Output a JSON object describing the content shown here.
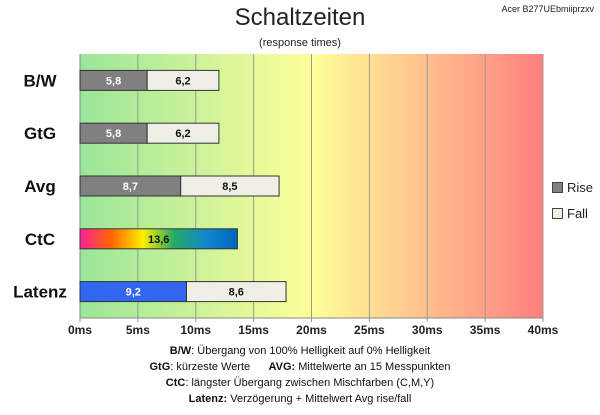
{
  "header": {
    "title": "Schaltzeiten",
    "subtitle": "(response times)",
    "monitor": "Acer B277UEbmiiprzxv"
  },
  "chart_data": {
    "type": "bar",
    "orientation": "horizontal",
    "stacked": true,
    "title": "Schaltzeiten",
    "subtitle": "(response times)",
    "categories": [
      "B/W",
      "GtG",
      "Avg",
      "CtC",
      "Latenz"
    ],
    "series": [
      {
        "name": "Rise",
        "color": "#808080",
        "values": [
          5.8,
          5.8,
          8.7,
          null,
          9.2
        ]
      },
      {
        "name": "Fall",
        "color": "#efefe6",
        "values": [
          6.2,
          6.2,
          8.5,
          null,
          8.6
        ]
      },
      {
        "name": "CtC",
        "values": [
          null,
          null,
          null,
          13.6,
          null
        ]
      }
    ],
    "bar_labels": [
      [
        "5,8",
        "6,2"
      ],
      [
        "5,8",
        "6,2"
      ],
      [
        "8,7",
        "8,5"
      ],
      [
        "13,6"
      ],
      [
        "9,2",
        "8,6"
      ]
    ],
    "xlim": [
      0,
      40
    ],
    "xticks": [
      0,
      5,
      10,
      15,
      20,
      25,
      30,
      35,
      40
    ],
    "xtick_labels": [
      "0ms",
      "5ms",
      "10ms",
      "15ms",
      "20ms",
      "25ms",
      "30ms",
      "35ms",
      "40ms"
    ],
    "grid": true,
    "legend_position": "right",
    "background_gradient": [
      "#99e699",
      "#ffff99",
      "#ff7f7f"
    ],
    "latenz_rise_color": "#3366ee",
    "ctc_gradient": [
      "#ff2299",
      "#ff6600",
      "#ffee00",
      "#22aa66",
      "#1188cc",
      "#0066bb"
    ]
  },
  "legend": {
    "rise_label": "Rise",
    "fall_label": "Fall",
    "rise_color": "#808080",
    "fall_color": "#efefe6"
  },
  "notes": {
    "line1_key": "B/W",
    "line1_text": ":  Übergang von 100% Helligkeit auf 0% Helligkeit",
    "line2_key_a": "GtG",
    "line2_text_a": ": kürzeste  Werte",
    "line2_key_b": "AVG:",
    "line2_text_b": " Mittelwerte  an 15 Messpunkten",
    "line3_key": "CtC",
    "line3_text": ": längster Übergang  zwischen Mischfarben (C,M,Y)",
    "line4_key": "Latenz:",
    "line4_text": " Verzögerung  + Mittelwert  Avg rise/fall"
  }
}
